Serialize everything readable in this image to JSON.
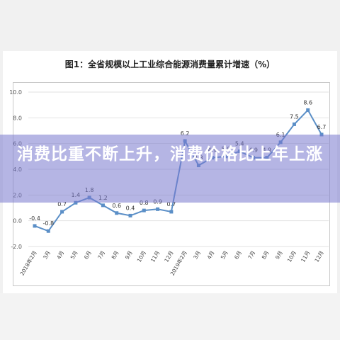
{
  "banner": {
    "headline": "消费比重不断上升，消费价格比上年上涨"
  },
  "chart_data": {
    "type": "line",
    "title": "图1：全省规模以上工业综合能源消费量累计增速（%）",
    "xlabel": "",
    "ylabel": "",
    "ylim": [
      -2.0,
      10.0
    ],
    "yticks": [
      "-2.0",
      "0.0",
      "2.0",
      "4.0",
      "6.0",
      "8.0",
      "10.0"
    ],
    "categories": [
      "2018年2月",
      "3月",
      "4月",
      "5月",
      "6月",
      "7月",
      "8月",
      "9月",
      "10月",
      "11月",
      "12月",
      "2019年2月",
      "3月",
      "4月",
      "5月",
      "6月",
      "7月",
      "8月",
      "9月",
      "10月",
      "11月",
      "12月"
    ],
    "values": [
      -0.4,
      -0.8,
      0.7,
      1.4,
      1.8,
      1.2,
      0.6,
      0.4,
      0.8,
      0.9,
      0.7,
      6.2,
      4.3,
      4.9,
      5.0,
      5.4,
      4.9,
      4.9,
      6.1,
      7.5,
      8.6,
      6.7
    ],
    "data_labels": [
      "-0.4",
      "-0.8",
      "0.7",
      "1.4",
      "1.8",
      "1.2",
      "0.6",
      "0.4",
      "0.8",
      "0.9",
      "0.7",
      "6.2",
      "4.3",
      "4.9",
      "5.0",
      "5.4",
      "4.9",
      "4.9",
      "6.1",
      "7.5",
      "8.6",
      "6.7"
    ],
    "line_color": "#5b8fc7",
    "grid": true,
    "legend": "none"
  }
}
